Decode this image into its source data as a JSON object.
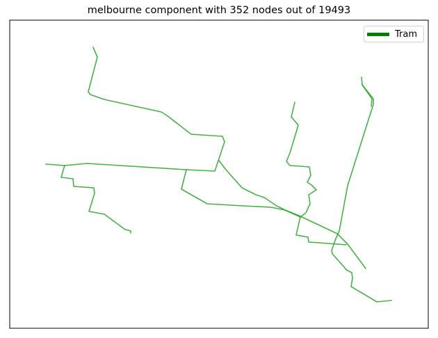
{
  "title": "melbourne component with 352 nodes out of 19493",
  "legend": {
    "label": "Tram",
    "swatch_color": "#008000"
  },
  "colors": {
    "line": "#2ca02c",
    "frame": "#000000",
    "background": "#ffffff"
  },
  "map": {
    "line_name": "Tram",
    "segments_count": 9
  }
}
